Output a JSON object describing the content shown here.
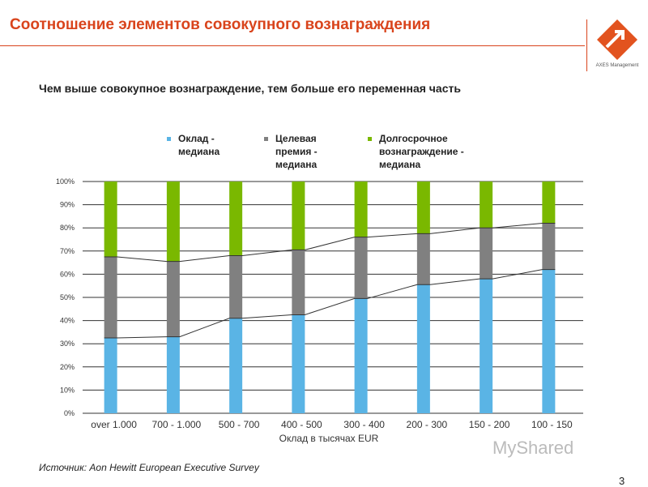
{
  "header": {
    "title": "Соотношение элементов совокупного вознаграждения",
    "logo_text": "AXES Management"
  },
  "subtitle": "Чем выше совокупное вознаграждение, тем больше его переменная часть",
  "source": "Источник: Aon Hewitt European Executive Survey",
  "page_number": "3",
  "watermark": "MyShared",
  "chart_data": {
    "type": "bar",
    "stacked": true,
    "categories": [
      "over  1.000",
      "700 -  1.000",
      "500 -  700",
      "400 -  500",
      "300 -  400",
      "200 -  300",
      "150 -  200",
      "100 -  150"
    ],
    "xlabel": "Оклад в тысячах EUR",
    "ylabel": "",
    "ylim": [
      0,
      100
    ],
    "yticks": [
      "0%",
      "10%",
      "20%",
      "30%",
      "40%",
      "50%",
      "60%",
      "70%",
      "80%",
      "90%",
      "100%"
    ],
    "grid": true,
    "legend_placement": "top",
    "series": [
      {
        "name": "Оклад - медиана",
        "color": "#5ab4e5",
        "values": [
          32.5,
          33,
          41,
          42.5,
          49.5,
          55.5,
          58,
          62
        ]
      },
      {
        "name": "Целевая премия - медиана",
        "color": "#808080",
        "values": [
          35,
          32.5,
          27,
          28,
          26.5,
          22,
          22,
          20
        ]
      },
      {
        "name": "Долгосрочное вознаграждение - медиана",
        "color": "#7ab800",
        "values": [
          32.5,
          34.5,
          32,
          29.5,
          24,
          22.5,
          20,
          18
        ]
      }
    ]
  }
}
